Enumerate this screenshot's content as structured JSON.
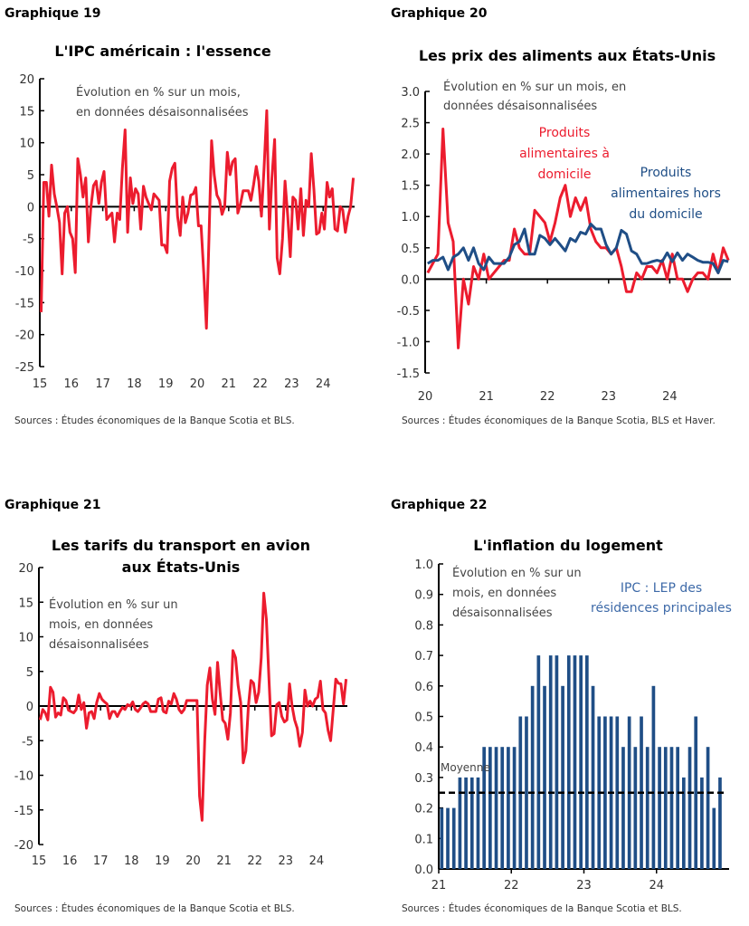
{
  "chart_data": [
    {
      "type": "line",
      "label": "Graphique 19",
      "title": "L'IPC américain : l'essence",
      "note": [
        "Évolution en % sur un mois,",
        "en données désaisonnalisées"
      ],
      "source": "Sources : Études économiques de la Banque Scotia et BLS.",
      "ylim": [
        -25,
        20
      ],
      "yticks": [
        "20",
        "15",
        "10",
        "5",
        "0",
        "-5",
        "-10",
        "-15",
        "-20",
        "-25"
      ],
      "xticks": [
        "15",
        "16",
        "17",
        "18",
        "19",
        "20",
        "21",
        "22",
        "23",
        "24"
      ],
      "x_start": "2015-01",
      "colors": {
        "line": "#EC1C2E"
      },
      "series": [
        {
          "values": [
            -16.5,
            3.8,
            3.8,
            -1.5,
            6.5,
            2,
            0,
            -2.5,
            -10.5,
            -1,
            0,
            -4,
            -5,
            -10.3,
            7.5,
            5,
            1.5,
            4.5,
            -5.5,
            0,
            3.3,
            4,
            0.5,
            3.8,
            5.5,
            -2,
            -1.5,
            -1,
            -5.5,
            -1,
            -2,
            6,
            12,
            -4,
            4.5,
            0.5,
            2.8,
            2,
            -3.5,
            3.2,
            1.5,
            0.5,
            -0.5,
            2,
            1.5,
            1,
            -6,
            -6,
            -7.2,
            4,
            6,
            6.8,
            -1.5,
            -4.5,
            1.5,
            -2.5,
            -1,
            1.8,
            2,
            3,
            -3,
            -3,
            -10.5,
            -19,
            -5,
            10.3,
            5,
            1.8,
            1,
            -1.2,
            0,
            8.5,
            5,
            7,
            7.5,
            -1,
            0.5,
            2.5,
            2.5,
            2.5,
            1,
            3.5,
            6.3,
            4,
            -1.5,
            6,
            15,
            -3.5,
            4.5,
            10.5,
            -8,
            -10.5,
            -5,
            4,
            -1.5,
            -7.8,
            1.5,
            1,
            -3.5,
            2.8,
            -4.5,
            1,
            0,
            8.3,
            2.5,
            -4.3,
            -4,
            -1,
            -3.5,
            3.8,
            1.5,
            2.8,
            -3.5,
            -3.8,
            0,
            -0.5,
            -4,
            -1.5,
            0,
            4.5
          ]
        }
      ]
    },
    {
      "type": "line",
      "label": "Graphique 20",
      "title": "Les prix des aliments aux États-Unis",
      "note": [
        "Évolution en % sur un mois, en",
        "données désaisonnalisées"
      ],
      "source": "Sources : Études économiques de la Banque Scotia, BLS et Haver.",
      "ylim": [
        -1.5,
        3.0
      ],
      "yticks": [
        "3.0",
        "2.5",
        "2.0",
        "1.5",
        "1.0",
        "0.5",
        "0.0",
        "-0.5",
        "-1.0",
        "-1.5"
      ],
      "xticks": [
        "20",
        "21",
        "22",
        "23",
        "24"
      ],
      "x_start": "2020-01",
      "colors": {
        "home": "#EC1C2E",
        "away": "#1F4E86"
      },
      "series": [
        {
          "name": "Produits alimentaires à domicile",
          "name_lines": [
            "Produits",
            "alimentaires à",
            "domicile"
          ],
          "values": [
            0.1,
            0.25,
            0.4,
            2.4,
            0.9,
            0.6,
            -1.1,
            0,
            -0.4,
            0.2,
            0,
            0.4,
            0,
            0.1,
            0.2,
            0.3,
            0.3,
            0.8,
            0.5,
            0.4,
            0.4,
            1.1,
            1.0,
            0.9,
            0.6,
            0.9,
            1.3,
            1.5,
            1.0,
            1.3,
            1.1,
            1.3,
            0.8,
            0.6,
            0.5,
            0.5,
            0.4,
            0.5,
            0.2,
            -0.2,
            -0.2,
            0.1,
            0,
            0.2,
            0.2,
            0.1,
            0.3,
            0,
            0.4,
            0,
            0,
            -0.2,
            0,
            0.1,
            0.1,
            0,
            0.4,
            0.1,
            0.5,
            0.3
          ]
        },
        {
          "name": "Produits alimentaires hors du domicile",
          "name_lines": [
            "Produits",
            "alimentaires hors",
            "du domicile"
          ],
          "values": [
            0.25,
            0.3,
            0.3,
            0.35,
            0.15,
            0.35,
            0.4,
            0.5,
            0.3,
            0.5,
            0.25,
            0.15,
            0.35,
            0.25,
            0.25,
            0.25,
            0.35,
            0.55,
            0.6,
            0.8,
            0.4,
            0.4,
            0.7,
            0.65,
            0.55,
            0.65,
            0.55,
            0.45,
            0.65,
            0.6,
            0.75,
            0.72,
            0.88,
            0.8,
            0.8,
            0.55,
            0.4,
            0.5,
            0.78,
            0.72,
            0.45,
            0.4,
            0.25,
            0.25,
            0.28,
            0.3,
            0.28,
            0.42,
            0.28,
            0.42,
            0.3,
            0.4,
            0.35,
            0.3,
            0.27,
            0.27,
            0.25,
            0.1,
            0.3,
            0.28
          ]
        }
      ]
    },
    {
      "type": "line",
      "label": "Graphique 21",
      "title": [
        "Les tarifs du transport en avion",
        "aux États-Unis"
      ],
      "note": [
        "Évolution en % sur un",
        "mois, en données",
        "désaisonnalisées"
      ],
      "source": "Sources : Études économiques de la Banque Scotia et BLS.",
      "ylim": [
        -20,
        20
      ],
      "yticks": [
        "20",
        "15",
        "10",
        "5",
        "0",
        "-5",
        "-10",
        "-15",
        "-20"
      ],
      "xticks": [
        "15",
        "16",
        "17",
        "18",
        "19",
        "20",
        "21",
        "22",
        "23",
        "24"
      ],
      "x_start": "2015-01",
      "colors": {
        "line": "#EC1C2E"
      },
      "series": [
        {
          "values": [
            -2,
            -0.5,
            -1,
            -2,
            2.7,
            2,
            -1.6,
            -1,
            -1.3,
            1.2,
            0.8,
            -0.6,
            -0.8,
            -1,
            -0.5,
            1.6,
            -0.5,
            0.5,
            -3.2,
            -1,
            -0.8,
            -1.8,
            0.5,
            1.8,
            1,
            0.6,
            0.3,
            -1.8,
            -0.8,
            -0.8,
            -1.5,
            -0.8,
            -0.2,
            -0.5,
            0.2,
            0,
            0.6,
            -0.5,
            -0.8,
            -0.3,
            0.3,
            0.6,
            0.3,
            -0.8,
            -0.8,
            -0.8,
            1,
            1.2,
            -0.8,
            -1,
            0.7,
            0.3,
            1.8,
            1,
            -0.5,
            -1,
            -0.5,
            0.8,
            0.8,
            0.8,
            0.8,
            0.8,
            -13,
            -16.5,
            -5,
            3,
            5.5,
            1,
            -1.2,
            6.3,
            2,
            -2,
            -2.5,
            -4.8,
            -1,
            8,
            7,
            3,
            0.5,
            -8.2,
            -6.5,
            0,
            3.7,
            3.3,
            0.5,
            2,
            7,
            16.3,
            12.5,
            4,
            -4.3,
            -4,
            0.2,
            0.5,
            -1.5,
            -2.3,
            -2,
            3.2,
            0,
            -2,
            -3.2,
            -5.8,
            -3.8,
            2.3,
            0,
            0.7,
            0,
            1,
            1.3,
            3.6,
            -0.5,
            -1,
            -3.5,
            -5,
            -0.5,
            3.9,
            3.3,
            3.2,
            0.3,
            3.9
          ]
        }
      ]
    },
    {
      "type": "bar",
      "label": "Graphique 22",
      "title": "L'inflation du logement",
      "note": [
        "Évolution en % sur un",
        "mois, en données",
        "désaisonnalisées"
      ],
      "series_label": [
        "IPC : LEP des",
        "résidences principales"
      ],
      "average_label": "Moyenne",
      "average": 0.25,
      "source": "Sources : Études économiques de la Banque Scotia et BLS.",
      "ylim": [
        0,
        1.0
      ],
      "yticks": [
        "1.0",
        "0.9",
        "0.8",
        "0.7",
        "0.6",
        "0.5",
        "0.4",
        "0.3",
        "0.2",
        "0.1",
        "0.0"
      ],
      "xticks": [
        "21",
        "22",
        "23",
        "24"
      ],
      "x_start": "2021-01",
      "colors": {
        "bar": "#1F4E86",
        "average": "#000000",
        "label": "#3E6AA8"
      },
      "series": [
        {
          "name": "IPC : LEP des résidences principales",
          "values": [
            0.2,
            0.2,
            0.2,
            0.3,
            0.3,
            0.3,
            0.3,
            0.4,
            0.4,
            0.4,
            0.4,
            0.4,
            0.4,
            0.5,
            0.5,
            0.6,
            0.7,
            0.6,
            0.7,
            0.7,
            0.6,
            0.7,
            0.7,
            0.7,
            0.7,
            0.6,
            0.5,
            0.5,
            0.5,
            0.5,
            0.4,
            0.5,
            0.4,
            0.5,
            0.4,
            0.6,
            0.4,
            0.4,
            0.4,
            0.4,
            0.3,
            0.4,
            0.5,
            0.3,
            0.4,
            0.2,
            0.3
          ]
        }
      ]
    }
  ]
}
